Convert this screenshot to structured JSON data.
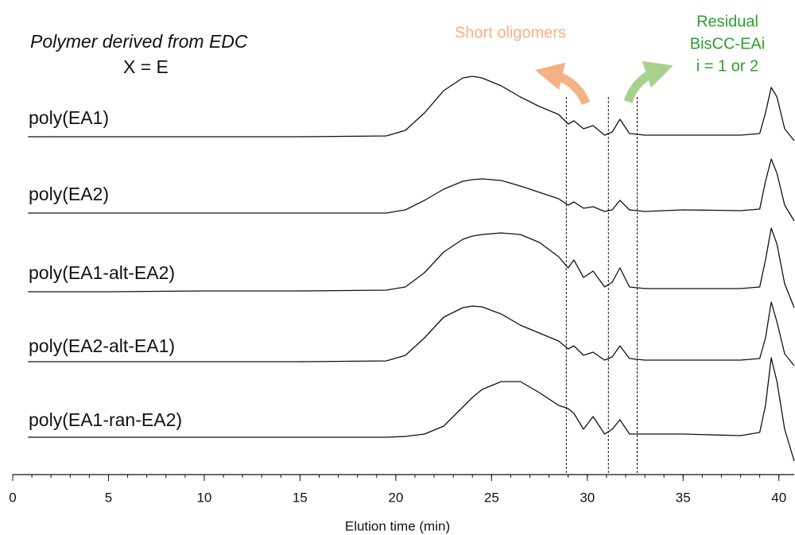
{
  "chart_data": {
    "type": "line",
    "annotations": {
      "subtitle": "Polymer derived from EDC",
      "note": "X = E",
      "short": "Short oligomers",
      "residual": [
        "Residual",
        "BisCC-EAi",
        "i = 1 or 2"
      ]
    },
    "xlabel": "Elution time (min)",
    "xlim": [
      0,
      40.8
    ],
    "xticks": [
      0,
      5,
      10,
      15,
      20,
      25,
      30,
      35,
      40
    ],
    "markers": [
      28.9,
      31.1,
      32.6
    ],
    "x": [
      0.8,
      5,
      10,
      15,
      19.5,
      20.5,
      21.5,
      22.5,
      23.5,
      24,
      24.5,
      25.5,
      26.5,
      27.5,
      28.5,
      29,
      29.3,
      29.8,
      30.3,
      30.9,
      31.3,
      31.7,
      32.2,
      33,
      35,
      38,
      39,
      39.3,
      39.6,
      39.9,
      40.3,
      40.8
    ],
    "series": [
      {
        "name": "poly(EA1)",
        "color": "#111111",
        "values": [
          0,
          0,
          0,
          0,
          1,
          8,
          30,
          58,
          74,
          76,
          74,
          64,
          50,
          38,
          28,
          16,
          20,
          10,
          14,
          2,
          6,
          22,
          4,
          2,
          2,
          2,
          4,
          30,
          62,
          50,
          10,
          -5
        ]
      },
      {
        "name": "poly(EA2)",
        "color": "#111111",
        "values": [
          0,
          0,
          0,
          0,
          0,
          4,
          16,
          30,
          40,
          42,
          43,
          41,
          34,
          26,
          18,
          10,
          14,
          6,
          8,
          2,
          4,
          16,
          4,
          2,
          4,
          3,
          5,
          40,
          68,
          50,
          10,
          -10
        ]
      },
      {
        "name": "poly(EA1-alt-EA2)",
        "color": "#111111",
        "values": [
          0,
          0,
          1,
          1,
          2,
          6,
          24,
          50,
          66,
          70,
          72,
          74,
          72,
          62,
          44,
          30,
          40,
          18,
          26,
          6,
          12,
          30,
          6,
          4,
          4,
          4,
          6,
          40,
          80,
          60,
          10,
          -20
        ]
      },
      {
        "name": "poly(EA2-alt-EA1)",
        "color": "#111111",
        "values": [
          0,
          0,
          0,
          0,
          1,
          8,
          30,
          56,
          68,
          70,
          69,
          60,
          46,
          36,
          26,
          16,
          20,
          8,
          12,
          2,
          6,
          20,
          4,
          2,
          2,
          2,
          4,
          30,
          75,
          50,
          10,
          -5
        ]
      },
      {
        "name": "poly(EA1-ran-EA2)",
        "color": "#111111",
        "values": [
          0,
          0,
          0,
          0,
          0,
          1,
          4,
          14,
          38,
          50,
          60,
          70,
          70,
          56,
          40,
          36,
          30,
          10,
          26,
          4,
          10,
          22,
          4,
          4,
          4,
          2,
          6,
          40,
          100,
          70,
          10,
          -30
        ]
      }
    ]
  }
}
